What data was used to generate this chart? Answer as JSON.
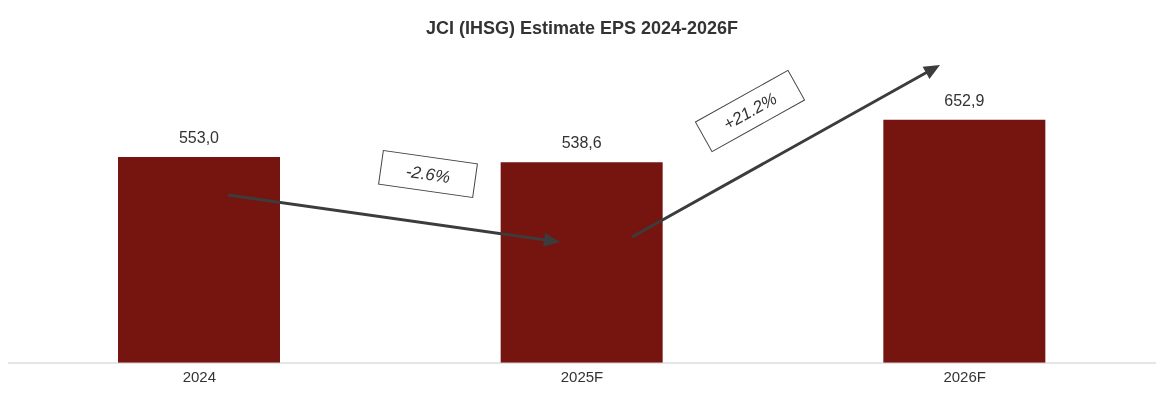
{
  "chart_data": {
    "type": "bar",
    "title": "JCI (IHSG) Estimate EPS 2024-2026F",
    "categories": [
      "2024",
      "2025F",
      "2026F"
    ],
    "values": [
      553.0,
      538.6,
      652.9
    ],
    "value_labels": [
      "553,0",
      "538,6",
      "652,9"
    ],
    "color": "#76150f",
    "annotations": [
      "-2.6%",
      "+21.2%"
    ]
  }
}
